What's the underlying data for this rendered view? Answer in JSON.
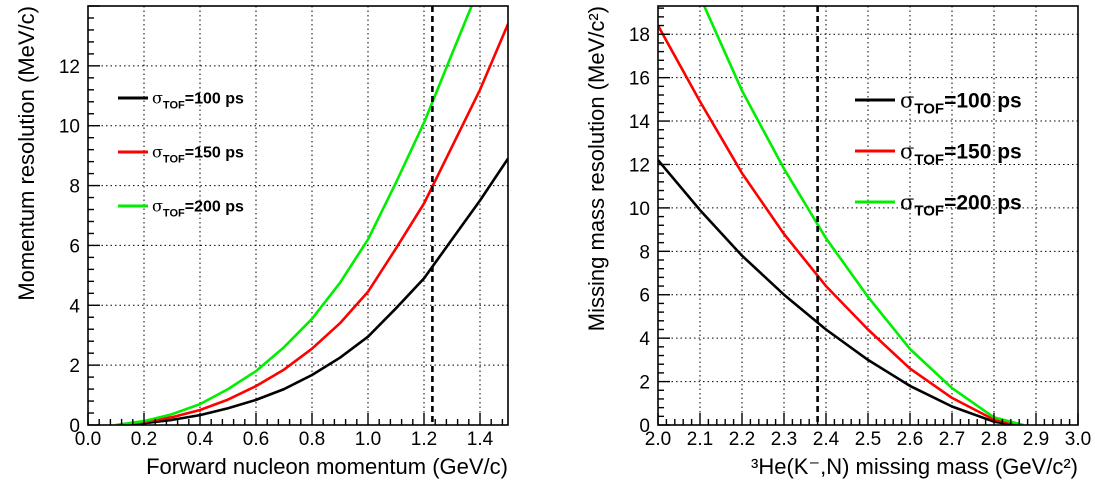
{
  "chart_data": [
    {
      "type": "line",
      "xlabel": "Forward nucleon momentum (GeV/c)",
      "ylabel": "Momentum resolution (MeV/c)",
      "xlim": [
        0.0,
        1.5
      ],
      "ylim": [
        0,
        14
      ],
      "x_ticks": [
        "0.0",
        "0.2",
        "0.4",
        "0.6",
        "0.8",
        "1.0",
        "1.2",
        "1.4"
      ],
      "y_ticks": [
        "0",
        "2",
        "4",
        "6",
        "8",
        "10",
        "12"
      ],
      "grid": true,
      "vline_x": 1.23,
      "legend_position": "upper-left",
      "series": [
        {
          "name": "σTOF=100 ps",
          "name_sigma": "σ",
          "name_sub": "TOF",
          "name_rest": "=100 ps",
          "color": "#000000",
          "x": [
            0.1,
            0.2,
            0.3,
            0.4,
            0.5,
            0.6,
            0.7,
            0.8,
            0.9,
            1.0,
            1.1,
            1.2,
            1.3,
            1.4,
            1.5
          ],
          "y": [
            0.0,
            0.06,
            0.17,
            0.33,
            0.56,
            0.84,
            1.2,
            1.67,
            2.25,
            2.95,
            3.9,
            4.9,
            6.2,
            7.5,
            8.9
          ]
        },
        {
          "name": "σTOF=150 ps",
          "name_sigma": "σ",
          "name_sub": "TOF",
          "name_rest": "=150 ps",
          "color": "#ff0000",
          "x": [
            0.1,
            0.2,
            0.3,
            0.4,
            0.5,
            0.6,
            0.7,
            0.8,
            0.9,
            1.0,
            1.1,
            1.2,
            1.3,
            1.4,
            1.5
          ],
          "y": [
            0.0,
            0.1,
            0.26,
            0.5,
            0.85,
            1.3,
            1.85,
            2.55,
            3.4,
            4.45,
            5.9,
            7.4,
            9.3,
            11.2,
            13.4
          ]
        },
        {
          "name": "σTOF=200 ps",
          "name_sigma": "σ",
          "name_sub": "TOF",
          "name_rest": "=200 ps",
          "color": "#00ee00",
          "x": [
            0.1,
            0.2,
            0.3,
            0.4,
            0.5,
            0.6,
            0.7,
            0.8,
            0.9,
            1.0,
            1.1,
            1.2,
            1.3,
            1.37
          ],
          "y": [
            0.0,
            0.13,
            0.36,
            0.7,
            1.2,
            1.8,
            2.6,
            3.55,
            4.75,
            6.2,
            8.1,
            10.1,
            12.4,
            14.0
          ]
        }
      ]
    },
    {
      "type": "line",
      "xlabel": "³He(K⁻,N) missing mass (GeV/c²)",
      "ylabel": "Missing mass resolution (MeV/c²)",
      "xlim": [
        2.0,
        3.0
      ],
      "ylim": [
        0,
        19.3
      ],
      "x_ticks": [
        "2.0",
        "2.1",
        "2.2",
        "2.3",
        "2.4",
        "2.5",
        "2.6",
        "2.7",
        "2.8",
        "2.9",
        "3.0"
      ],
      "y_ticks": [
        "0",
        "2",
        "4",
        "6",
        "8",
        "10",
        "12",
        "14",
        "16",
        "18"
      ],
      "grid": true,
      "vline_x": 2.38,
      "legend_position": "upper-right",
      "series": [
        {
          "name": "σTOF=100 ps",
          "name_sigma": "σ",
          "name_sub": "TOF",
          "name_rest": "=100 ps",
          "color": "#000000",
          "x": [
            2.0,
            2.1,
            2.2,
            2.3,
            2.4,
            2.5,
            2.6,
            2.7,
            2.8,
            2.85
          ],
          "y": [
            12.2,
            9.9,
            7.8,
            6.0,
            4.4,
            3.0,
            1.8,
            0.85,
            0.15,
            0.0
          ]
        },
        {
          "name": "σTOF=150 ps",
          "name_sigma": "σ",
          "name_sub": "TOF",
          "name_rest": "=150 ps",
          "color": "#ff0000",
          "x": [
            2.0,
            2.1,
            2.2,
            2.3,
            2.4,
            2.5,
            2.6,
            2.7,
            2.8,
            2.86
          ],
          "y": [
            18.4,
            14.9,
            11.6,
            8.8,
            6.4,
            4.4,
            2.6,
            1.25,
            0.25,
            0.0
          ]
        },
        {
          "name": "σTOF=200 ps",
          "name_sigma": "σ",
          "name_sub": "TOF",
          "name_rest": "=200 ps",
          "color": "#00ee00",
          "x": [
            2.11,
            2.2,
            2.3,
            2.4,
            2.5,
            2.6,
            2.7,
            2.8,
            2.87
          ],
          "y": [
            19.3,
            15.4,
            11.8,
            8.6,
            5.9,
            3.5,
            1.7,
            0.35,
            0.0
          ]
        }
      ]
    }
  ]
}
